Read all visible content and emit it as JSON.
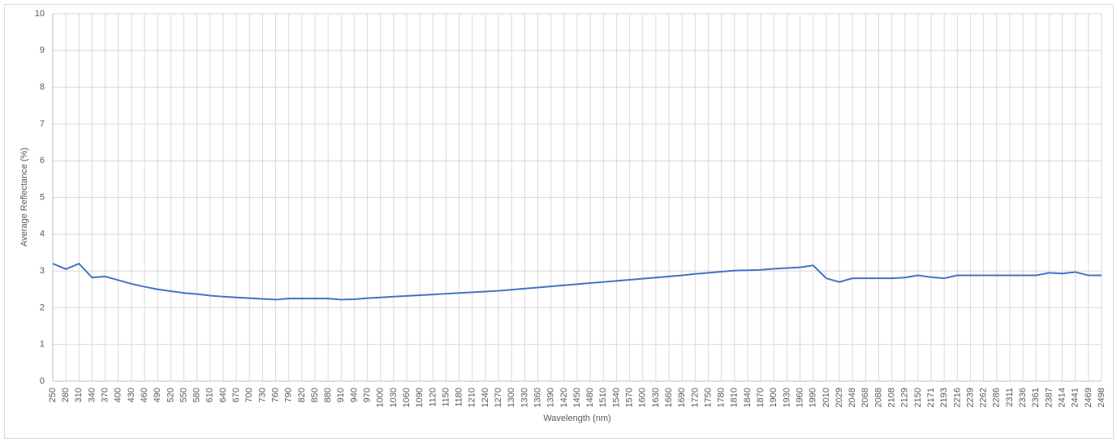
{
  "chart_data": {
    "type": "line",
    "x_label": "Wavelength (nm)",
    "y_label": "Average Reflectance (%)",
    "categories": [
      "250",
      "280",
      "310",
      "340",
      "370",
      "400",
      "430",
      "460",
      "490",
      "520",
      "550",
      "580",
      "610",
      "640",
      "670",
      "700",
      "730",
      "760",
      "790",
      "820",
      "850",
      "880",
      "910",
      "940",
      "970",
      "1000",
      "1030",
      "1060",
      "1090",
      "1120",
      "1150",
      "1180",
      "1210",
      "1240",
      "1270",
      "1300",
      "1330",
      "1360",
      "1390",
      "1420",
      "1450",
      "1480",
      "1510",
      "1540",
      "1570",
      "1600",
      "1630",
      "1660",
      "1690",
      "1720",
      "1750",
      "1780",
      "1810",
      "1840",
      "1870",
      "1900",
      "1930",
      "1960",
      "1990",
      "2010",
      "2029",
      "2048",
      "2068",
      "2088",
      "2108",
      "2129",
      "2150",
      "2171",
      "2193",
      "2216",
      "2239",
      "2262",
      "2286",
      "2311",
      "2336",
      "2361",
      "2387",
      "2414",
      "2441",
      "2469",
      "2498"
    ],
    "series": [
      {
        "name": "Average Reflectance",
        "color": "#4472c4",
        "values": [
          3.2,
          3.05,
          3.2,
          2.82,
          2.85,
          2.75,
          2.65,
          2.57,
          2.5,
          2.45,
          2.4,
          2.37,
          2.33,
          2.3,
          2.28,
          2.26,
          2.24,
          2.22,
          2.25,
          2.25,
          2.25,
          2.25,
          2.22,
          2.23,
          2.26,
          2.28,
          2.3,
          2.32,
          2.34,
          2.36,
          2.38,
          2.4,
          2.42,
          2.44,
          2.46,
          2.49,
          2.52,
          2.55,
          2.58,
          2.61,
          2.64,
          2.67,
          2.7,
          2.73,
          2.76,
          2.79,
          2.82,
          2.85,
          2.88,
          2.92,
          2.95,
          2.98,
          3.01,
          3.02,
          3.03,
          3.06,
          3.08,
          3.1,
          3.15,
          2.8,
          2.7,
          2.8,
          2.8,
          2.8,
          2.8,
          2.82,
          2.88,
          2.83,
          2.8,
          2.88,
          2.88,
          2.88,
          2.88,
          2.88,
          2.88,
          2.88,
          2.95,
          2.93,
          2.97,
          2.88,
          2.88
        ]
      }
    ],
    "ylim": [
      0,
      10
    ],
    "yticks": [
      0,
      1,
      2,
      3,
      4,
      5,
      6,
      7,
      8,
      9,
      10
    ],
    "grid": true
  }
}
